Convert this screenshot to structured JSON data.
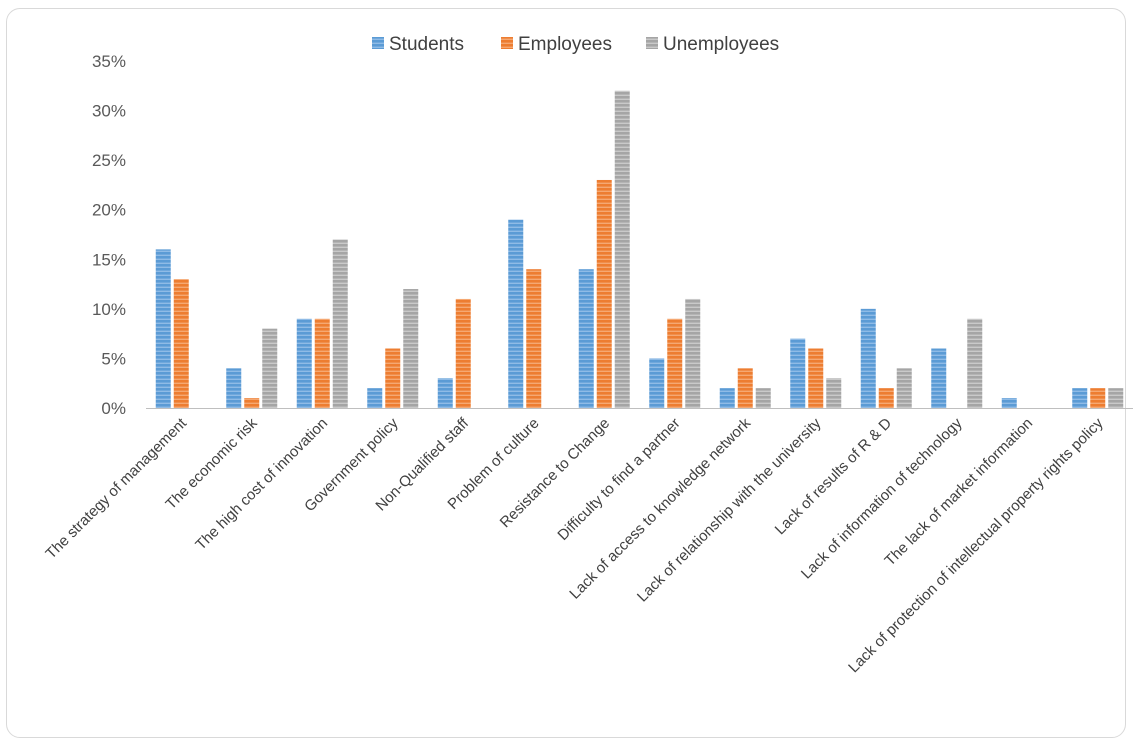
{
  "chart_data": {
    "type": "bar",
    "categories": [
      "The strategy of management",
      "The economic risk",
      "The high cost of innovation",
      "Government policy",
      "Non-Qualified staff",
      "Problem of culture",
      "Resistance to Change",
      "Difficulty to find a partner",
      "Lack of access to knowledge network",
      "Lack of relationship with the university",
      "Lack of results of R & D",
      "Lack of information of technology",
      "The lack of market information",
      "Lack of protection of intellectual property rights policy"
    ],
    "series": [
      {
        "name": "Students",
        "values": [
          16,
          4,
          9,
          2,
          3,
          19,
          14,
          5,
          2,
          7,
          10,
          6,
          1,
          2
        ],
        "color": "#5b9bd5"
      },
      {
        "name": "Employees",
        "values": [
          13,
          1,
          9,
          6,
          11,
          14,
          23,
          9,
          4,
          6,
          2,
          0,
          0,
          2
        ],
        "color": "#ed7d31"
      },
      {
        "name": "Unemployees",
        "values": [
          0,
          8,
          17,
          12,
          0,
          0,
          32,
          11,
          2,
          3,
          4,
          9,
          0,
          2
        ],
        "color": "#a5a5a5"
      }
    ],
    "yticks": [
      "0%",
      "5%",
      "10%",
      "15%",
      "20%",
      "25%",
      "30%",
      "35%"
    ],
    "ylim": [
      0,
      35
    ],
    "unit": "%",
    "legend_position": "top-center",
    "grid": false
  }
}
